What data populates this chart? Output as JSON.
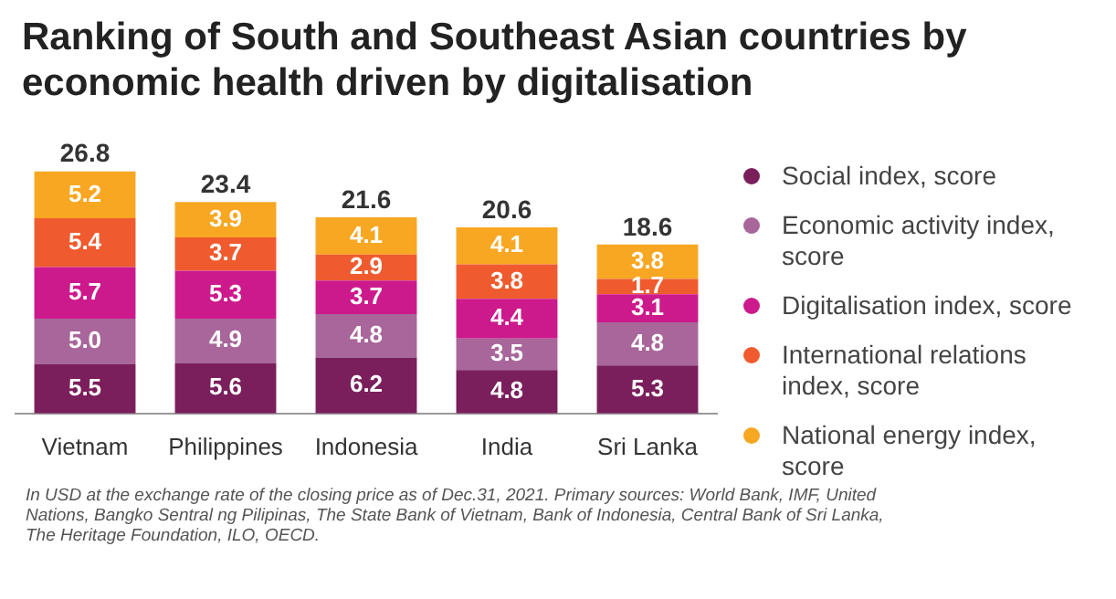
{
  "chart_data": {
    "type": "bar",
    "title": "Ranking of South and Southeast Asian countries by economic health driven by digitalisation",
    "categories": [
      "Vietnam",
      "Philippines",
      "Indonesia",
      "India",
      "Sri Lanka"
    ],
    "stacked": true,
    "legend": "right",
    "tick_labels": "x",
    "grid": false,
    "totals": [
      "26.8",
      "23.4",
      "21.6",
      "20.6",
      "18.6"
    ],
    "series": [
      {
        "name": "Social index, score",
        "color": "#7a1f5c",
        "values": [
          5.5,
          5.6,
          6.2,
          4.8,
          5.3
        ],
        "value_labels": [
          "5.5",
          "5.6",
          "6.2",
          "4.8",
          "5.3"
        ]
      },
      {
        "name": "Economic activity index, score",
        "color": "#a8669a",
        "values": [
          5.0,
          4.9,
          4.8,
          3.5,
          4.8
        ],
        "value_labels": [
          "5.0",
          "4.9",
          "4.8",
          "3.5",
          "4.8"
        ]
      },
      {
        "name": "Digitalisation index, score",
        "color": "#cc1a8c",
        "values": [
          5.7,
          5.3,
          3.7,
          4.4,
          3.1
        ],
        "value_labels": [
          "5.7",
          "5.3",
          "3.7",
          "4.4",
          "3.1"
        ]
      },
      {
        "name": "International relations index, score",
        "color": "#ef5b2e",
        "values": [
          5.4,
          3.7,
          2.9,
          3.8,
          1.7
        ],
        "value_labels": [
          "5.4",
          "3.7",
          "2.9",
          "3.8",
          "1.7"
        ]
      },
      {
        "name": "National energy index, score",
        "color": "#f7a722",
        "values": [
          5.2,
          3.9,
          4.1,
          4.1,
          3.8
        ],
        "value_labels": [
          "5.2",
          "3.9",
          "4.1",
          "4.1",
          "3.8"
        ]
      }
    ],
    "annotations": [
      "In USD at the exchange rate of the closing price as of Dec.31, 2021. Primary sources: World Bank, IMF, United Nations, Bangko Sentral ng Pilipinas, The State Bank of Vietnam, Bank of Indonesia, Central Bank of Sri Lanka, The Heritage Foundation, ILO, OECD."
    ]
  }
}
